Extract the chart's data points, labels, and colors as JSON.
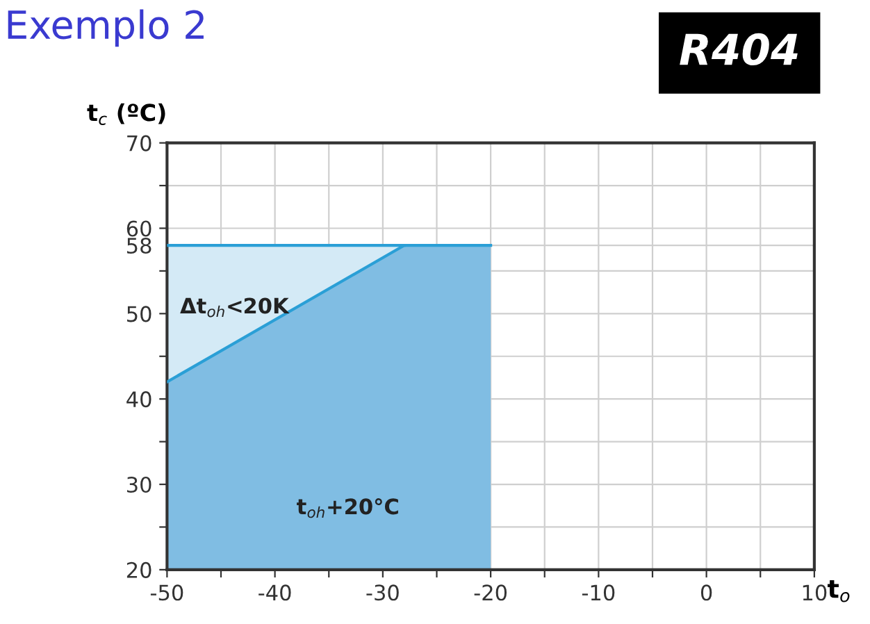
{
  "chart_data": {
    "type": "area",
    "title": "Exemplo 2",
    "xlabel": "t$_{o}$",
    "ylabel": "t$_{c}$ (ºC)",
    "series": [
      {
        "x": [
          -50,
          -28
        ],
        "values": [
          58,
          58
        ],
        "color": "#d4eaf6"
      },
      {
        "x": [
          -50,
          -28,
          -20
        ],
        "values": [
          42,
          58,
          58
        ],
        "color": "#80bde3"
      }
    ],
    "xlim": [
      -50,
      10
    ],
    "ylim": [
      20,
      70
    ],
    "xticks": [
      -50,
      {
        "value": -45,
        "label": null
      },
      -40,
      {
        "value": -35,
        "label": null
      },
      -30,
      {
        "value": -25,
        "label": null
      },
      -20,
      {
        "value": -15,
        "label": null
      },
      -10,
      {
        "value": -5,
        "label": null
      },
      0,
      {
        "value": 5,
        "label": null
      },
      10
    ],
    "yticks": [
      20,
      {
        "value": 25,
        "label": null
      },
      30,
      {
        "value": 35,
        "label": null
      },
      40,
      {
        "value": 45,
        "label": null
      },
      50,
      {
        "value": 55,
        "label": null
      },
      {
        "value": 58,
        "label": "58"
      },
      60,
      {
        "value": 65,
        "label": null
      },
      70
    ],
    "annotations": [
      "Δt$_{oh}$<20K",
      "t$_{oh}$+20°C",
      "R404"
    ],
    "grid": true
  }
}
